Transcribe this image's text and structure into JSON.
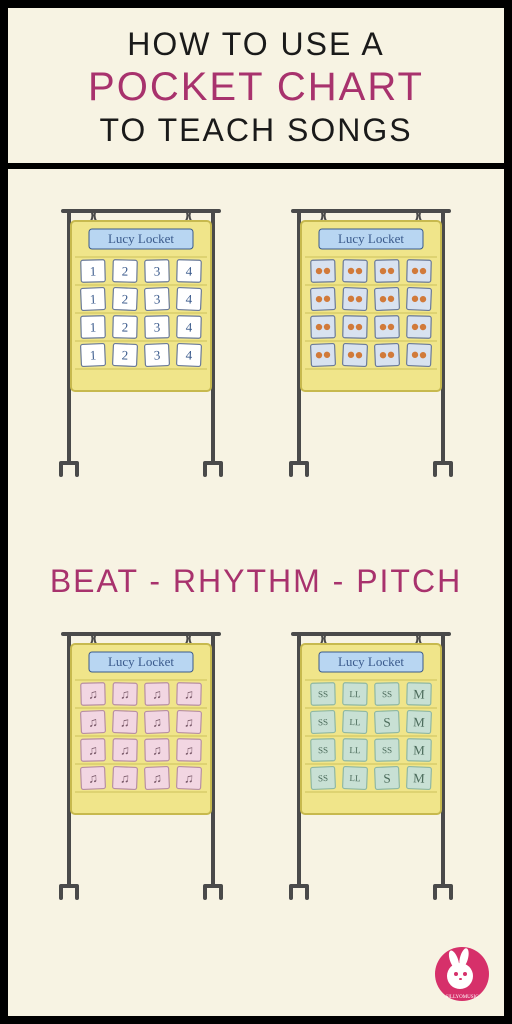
{
  "header": {
    "line1": "HOW TO USE A",
    "line2": "POCKET CHART",
    "line3": "TO TEACH SONGS"
  },
  "subtitle": "BEAT - RHYTHM - PITCH",
  "chartCommon": {
    "title": "Lucy Locket",
    "titleBg": "#b8d6f2",
    "titleColor": "#3a5a8c",
    "frameColor": "#4a4a4a",
    "boardFill": "#f0e58a",
    "boardStroke": "#c7b94e",
    "rowLine": "#d8cd6a"
  },
  "charts": {
    "topLeft": {
      "cardFill": "#ffffff",
      "cardStroke": "#6a7a99",
      "textColor": "#3a5a8c",
      "rows": [
        [
          "1",
          "2",
          "3",
          "4"
        ],
        [
          "1",
          "2",
          "3",
          "4"
        ],
        [
          "1",
          "2",
          "3",
          "4"
        ],
        [
          "1",
          "2",
          "3",
          "4"
        ]
      ],
      "renderMode": "text"
    },
    "topRight": {
      "cardFill": "#d8e2f0",
      "cardStroke": "#6a7a99",
      "dotColor": "#d17a3a",
      "rows": [
        [
          2,
          2,
          2,
          2
        ],
        [
          2,
          2,
          2,
          2
        ],
        [
          2,
          2,
          2,
          2
        ],
        [
          2,
          2,
          2,
          2
        ]
      ],
      "renderMode": "dots"
    },
    "bottomLeft": {
      "cardFill": "#f2d6e2",
      "cardStroke": "#b88fa3",
      "noteColor": "#7a5a6a",
      "rows": [
        [
          "♫",
          "♫",
          "♫",
          "♫"
        ],
        [
          "♫",
          "♫",
          "♫",
          "♫"
        ],
        [
          "♫",
          "♫",
          "♫",
          "♫"
        ],
        [
          "♫",
          "♫",
          "♫",
          "♫"
        ]
      ],
      "renderMode": "text"
    },
    "bottomRight": {
      "cardFill": "#c8e0d4",
      "cardStroke": "#8fb8a3",
      "textColor": "#4a6a5a",
      "rows": [
        [
          "SS",
          "LL",
          "SS",
          "M"
        ],
        [
          "SS",
          "LL",
          "S",
          "M"
        ],
        [
          "SS",
          "LL",
          "SS",
          "M"
        ],
        [
          "SS",
          "LL",
          "S",
          "M"
        ]
      ],
      "renderMode": "text"
    }
  },
  "colors": {
    "pageBg": "#f7f3e3",
    "frameBorder": "#000000",
    "accent": "#a8326d",
    "headerText": "#1a1a1a",
    "logoBg": "#d6306a",
    "logoFg": "#ffffff"
  },
  "logo": {
    "label": "SILLYOMUSIC"
  }
}
